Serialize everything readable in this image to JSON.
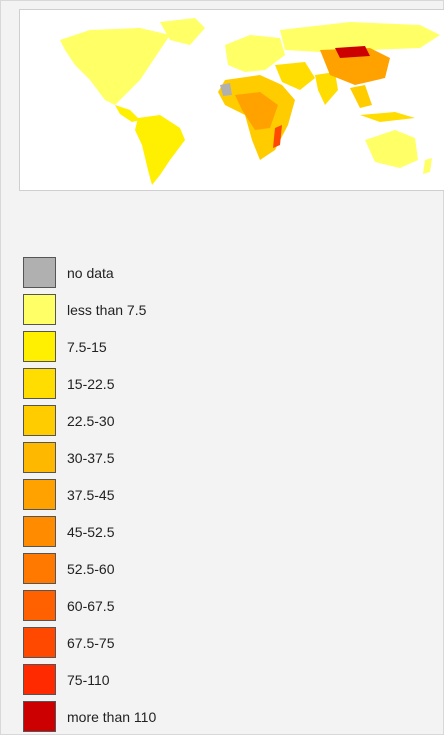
{
  "legend": {
    "items": [
      {
        "label": "no data",
        "color": "#b0b0b0"
      },
      {
        "label": "less than 7.5",
        "color": "#ffff66"
      },
      {
        "label": "7.5-15",
        "color": "#ffef00"
      },
      {
        "label": "15-22.5",
        "color": "#ffdd00"
      },
      {
        "label": "22.5-30",
        "color": "#ffcc00"
      },
      {
        "label": "30-37.5",
        "color": "#ffb800"
      },
      {
        "label": "37.5-45",
        "color": "#ffa200"
      },
      {
        "label": "45-52.5",
        "color": "#ff8c00"
      },
      {
        "label": "52.5-60",
        "color": "#ff7800"
      },
      {
        "label": "60-67.5",
        "color": "#ff6000"
      },
      {
        "label": "67.5-75",
        "color": "#ff4800"
      },
      {
        "label": "75-110",
        "color": "#ff2a00"
      },
      {
        "label": "more than 110",
        "color": "#cc0000"
      }
    ]
  }
}
